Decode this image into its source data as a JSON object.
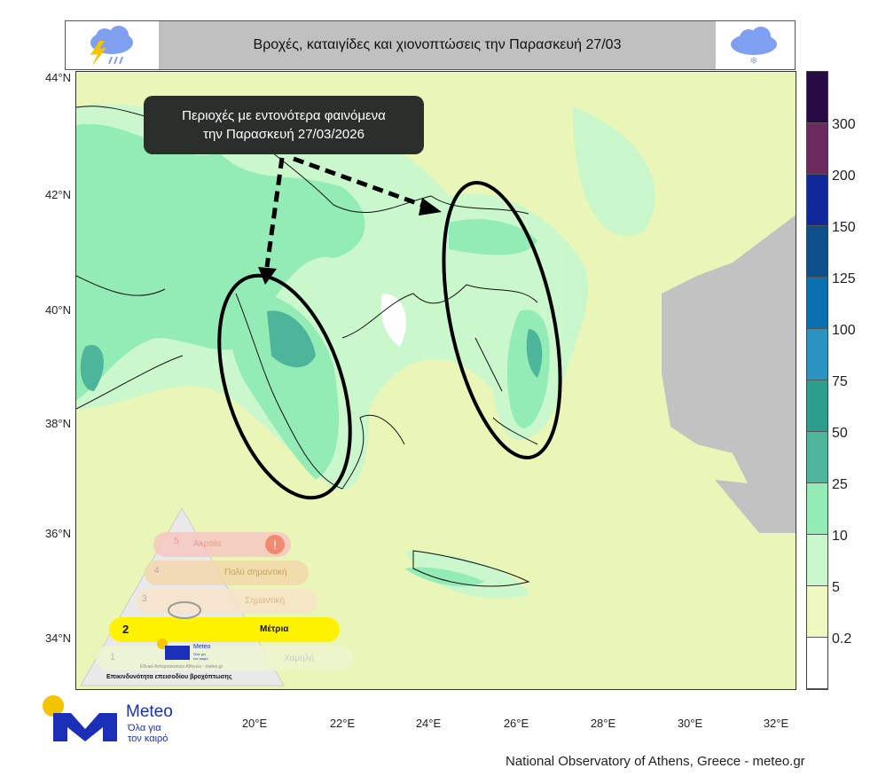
{
  "header": {
    "title": "Βροχές, καταιγίδες και χιονοπτώσεις την Παρασκευή 27/03",
    "left_icon": "thunderstorm-rain-icon",
    "right_icon": "snow-cloud-icon"
  },
  "callout": {
    "line1": "Περιοχές με εντονότερα φαινόμενα",
    "line2": "την Παρασκευή 27/03/2026"
  },
  "lat_labels": [
    "44°N",
    "42°N",
    "40°N",
    "38°N",
    "36°N",
    "34°N"
  ],
  "lon_labels": [
    "20°E",
    "22°E",
    "24°E",
    "26°E",
    "28°E",
    "30°E",
    "32°E"
  ],
  "colorbar": {
    "labels": [
      "300",
      "200",
      "150",
      "125",
      "100",
      "75",
      "50",
      "25",
      "10",
      "5",
      "0.2"
    ],
    "colors": [
      "#2a0a45",
      "#6b2b5e",
      "#10289a",
      "#0d4f8b",
      "#0b70b0",
      "#2b93bf",
      "#2e9e8c",
      "#4cb59a",
      "#93ebb5",
      "#c8f7cc",
      "#eef8c0",
      "#ffffff"
    ]
  },
  "risk_scale": {
    "levels": [
      {
        "n": "5",
        "label": "Ακραία"
      },
      {
        "n": "4",
        "label": "Πολύ σημαντική"
      },
      {
        "n": "3",
        "label": "Σημαντική"
      },
      {
        "n": "2",
        "label": "Μέτρια"
      },
      {
        "n": "1",
        "label": "Χαμηλή"
      }
    ],
    "active_level": "2",
    "caption": "Επικινδυνότητα επεισοδίου βροχόπτωσης",
    "org_line": "Εθνικό Αστεροσκοπείο Αθηνών - meteo.gr",
    "logo_name": "Meteo",
    "logo_tag": "Όλα για τον καιρό"
  },
  "logo": {
    "name": "Meteo",
    "tag1": "Όλα για",
    "tag2": "τον καιρό"
  },
  "credit": "National Observatory of Athens, Greece - meteo.gr"
}
